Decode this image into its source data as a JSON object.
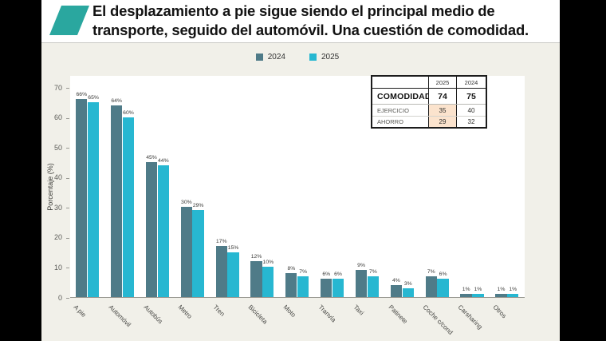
{
  "header": {
    "title_line1": "El desplazamiento a pie sigue siendo el principal medio de",
    "title_line2": "transporte, seguido del automóvil. Una cuestión de comodidad.",
    "logo_color": "#2aa79f"
  },
  "legend": {
    "items": [
      {
        "label": "2024",
        "color": "#4f7b88"
      },
      {
        "label": "2025",
        "color": "#27b7d1"
      }
    ]
  },
  "comparison_table": {
    "col_headers": [
      "2025",
      "2024"
    ],
    "rows": [
      {
        "label": "COMODIDAD",
        "v2025": "74",
        "v2024": "75",
        "bold": true,
        "highlight_2025": false
      },
      {
        "label": "EJERCICIO",
        "v2025": "35",
        "v2024": "40",
        "bold": false,
        "highlight_2025": true
      },
      {
        "label": "AHORRO",
        "v2025": "29",
        "v2024": "32",
        "bold": false,
        "highlight_2025": true
      }
    ],
    "highlight_color": "#fbe3cd"
  },
  "chart_data": {
    "type": "bar",
    "title": "",
    "categories": [
      "A pie",
      "Automóvil",
      "Autobús",
      "Metro",
      "Tren",
      "Bicicleta",
      "Moto",
      "Tranvía",
      "Taxi",
      "Patinete",
      "Coche c/cond",
      "Carsharing",
      "Otros"
    ],
    "series": [
      {
        "name": "2024",
        "color": "#4f7b88",
        "values": [
          66,
          64,
          45,
          30,
          17,
          12,
          8,
          6,
          9,
          4,
          7,
          1,
          1
        ]
      },
      {
        "name": "2025",
        "color": "#27b7d1",
        "values": [
          65,
          60,
          44,
          29,
          15,
          10,
          7,
          6,
          7,
          3,
          6,
          1,
          1
        ]
      }
    ],
    "value_label_suffix": "%",
    "xlabel": "",
    "ylabel": "Porcentaje (%)",
    "ylim": [
      0,
      70
    ],
    "yticks": [
      0,
      10,
      20,
      30,
      40,
      50,
      60,
      70
    ],
    "grid": false,
    "legend_position": "top-center",
    "plot_background": "#ffffff",
    "figure_background": "#f1f0e9"
  }
}
